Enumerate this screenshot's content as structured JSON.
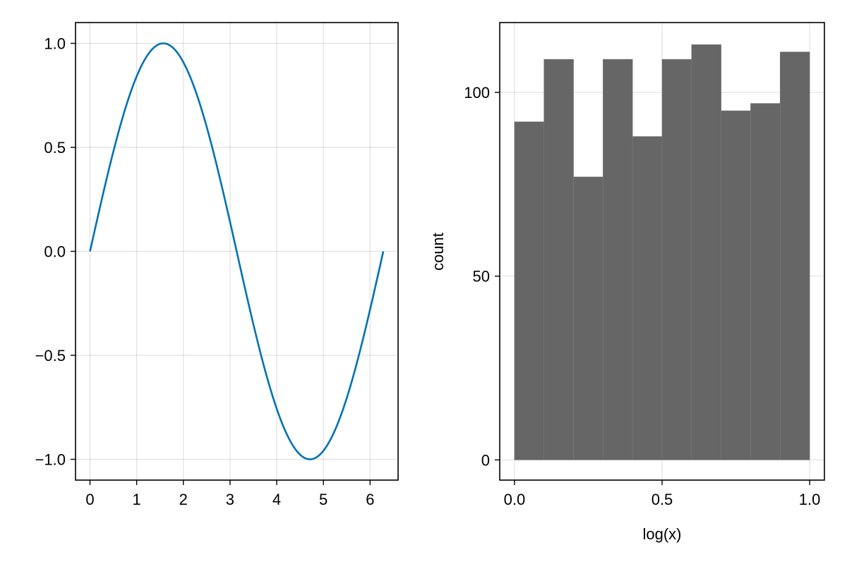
{
  "chart_data": [
    {
      "type": "line",
      "title": "",
      "xlabel": "",
      "ylabel": "",
      "xlim": [
        -0.31,
        6.6
      ],
      "ylim": [
        -1.1,
        1.1
      ],
      "xticks": [
        0,
        1,
        2,
        3,
        4,
        5,
        6
      ],
      "xtick_labels": [
        "0",
        "1",
        "2",
        "3",
        "4",
        "5",
        "6"
      ],
      "yticks": [
        -1.0,
        -0.5,
        0.0,
        0.5,
        1.0
      ],
      "ytick_labels": [
        "−1.0",
        "−0.5",
        "0.0",
        "0.5",
        "1.0"
      ],
      "grid": true,
      "legend": "none",
      "series": [
        {
          "function": "sin(x)",
          "x_range": [
            0,
            6.283
          ],
          "samples": 200,
          "color": "#0072B2"
        }
      ]
    },
    {
      "type": "bar",
      "subtype": "histogram",
      "title": "",
      "xlabel": "log(x)",
      "ylabel": "count",
      "xlim": [
        -0.05,
        1.05
      ],
      "ylim": [
        -5.5,
        119
      ],
      "xticks": [
        0.0,
        0.5,
        1.0
      ],
      "xtick_labels": [
        "0.0",
        "0.5",
        "1.0"
      ],
      "yticks": [
        0,
        50,
        100
      ],
      "ytick_labels": [
        "0",
        "50",
        "100"
      ],
      "grid": true,
      "legend": "none",
      "bin_edges": [
        0.0,
        0.1,
        0.2,
        0.3,
        0.4,
        0.5,
        0.6,
        0.7,
        0.8,
        0.9,
        1.0
      ],
      "values": [
        92,
        109,
        77,
        109,
        88,
        109,
        113,
        95,
        97,
        111
      ],
      "color": "#666666"
    }
  ]
}
